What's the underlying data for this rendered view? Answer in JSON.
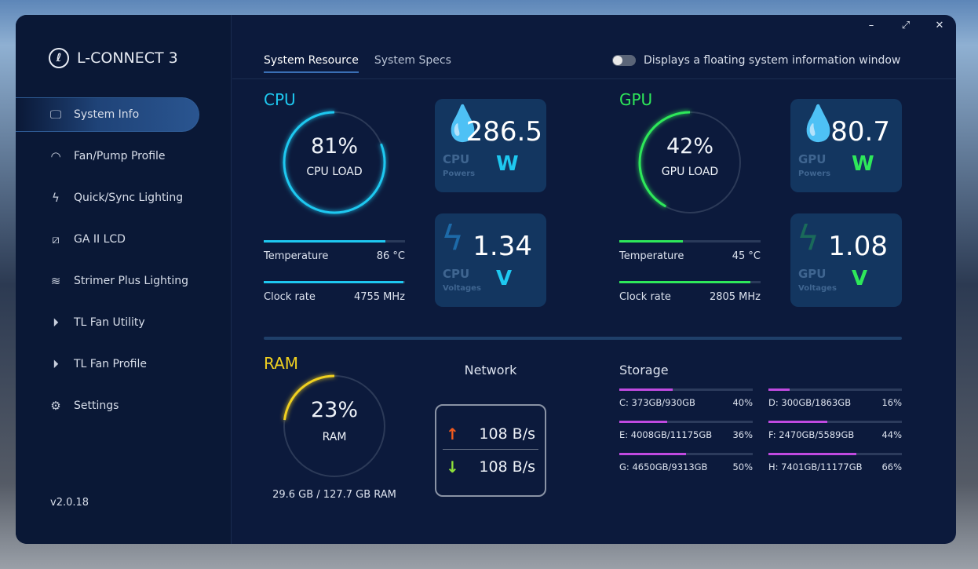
{
  "app": {
    "title": "L-CONNECT 3",
    "version": "v2.0.18"
  },
  "sidebar": {
    "items": [
      {
        "label": "System Info",
        "icon": "monitor-icon",
        "active": true
      },
      {
        "label": "Fan/Pump Profile",
        "icon": "gauge-icon"
      },
      {
        "label": "Quick/Sync Lighting",
        "icon": "lightning-icon"
      },
      {
        "label": "GA II LCD",
        "icon": "lcd-icon"
      },
      {
        "label": "Strimer Plus Lighting",
        "icon": "strimer-icon"
      },
      {
        "label": "TL Fan Utility",
        "icon": "play-icon"
      },
      {
        "label": "TL Fan Profile",
        "icon": "play-icon"
      },
      {
        "label": "Settings",
        "icon": "gear-icon"
      }
    ]
  },
  "tabs": [
    {
      "label": "System Resource",
      "active": true
    },
    {
      "label": "System Specs"
    }
  ],
  "floating_toggle": {
    "label": "Displays a floating system information window",
    "on": false
  },
  "window_controls": {
    "minimize": "–",
    "maximize": "⤢",
    "close": "✕"
  },
  "colors": {
    "cpu": "#1ec8f0",
    "gpu": "#2ee85a",
    "ram": "#f0d020",
    "storage": "#c04ae0"
  },
  "cpu": {
    "title": "CPU",
    "load": "81%",
    "load_value": 81,
    "load_label": "CPU LOAD",
    "temp_label": "Temperature",
    "temp": "86 °C",
    "temp_pct": 86,
    "clock_label": "Clock rate",
    "clock": "4755 MHz",
    "clock_pct": 99,
    "power": {
      "value": "286.5",
      "unit": "W",
      "name": "CPU",
      "sub": "Powers"
    },
    "voltage": {
      "value": "1.34",
      "unit": "V",
      "name": "CPU",
      "sub": "Voltages"
    }
  },
  "gpu": {
    "title": "GPU",
    "load": "42%",
    "load_value": 42,
    "load_label": "GPU LOAD",
    "temp_label": "Temperature",
    "temp": "45 °C",
    "temp_pct": 45,
    "clock_label": "Clock rate",
    "clock": "2805 MHz",
    "clock_pct": 93,
    "power": {
      "value": "80.7",
      "unit": "W",
      "name": "GPU",
      "sub": "Powers"
    },
    "voltage": {
      "value": "1.08",
      "unit": "V",
      "name": "GPU",
      "sub": "Voltages"
    }
  },
  "ram": {
    "title": "RAM",
    "load": "23%",
    "load_value": 23,
    "load_label": "RAM",
    "usage": "29.6 GB / 127.7 GB RAM"
  },
  "network": {
    "title": "Network",
    "up": "108 B/s",
    "down": "108 B/s"
  },
  "storage": {
    "title": "Storage",
    "drives": [
      {
        "label": "C: 373GB/930GB",
        "pct": "40%",
        "value": 40
      },
      {
        "label": "D: 300GB/1863GB",
        "pct": "16%",
        "value": 16
      },
      {
        "label": "E: 4008GB/11175GB",
        "pct": "36%",
        "value": 36
      },
      {
        "label": "F: 2470GB/5589GB",
        "pct": "44%",
        "value": 44
      },
      {
        "label": "G: 4650GB/9313GB",
        "pct": "50%",
        "value": 50
      },
      {
        "label": "H: 7401GB/11177GB",
        "pct": "66%",
        "value": 66
      }
    ]
  }
}
